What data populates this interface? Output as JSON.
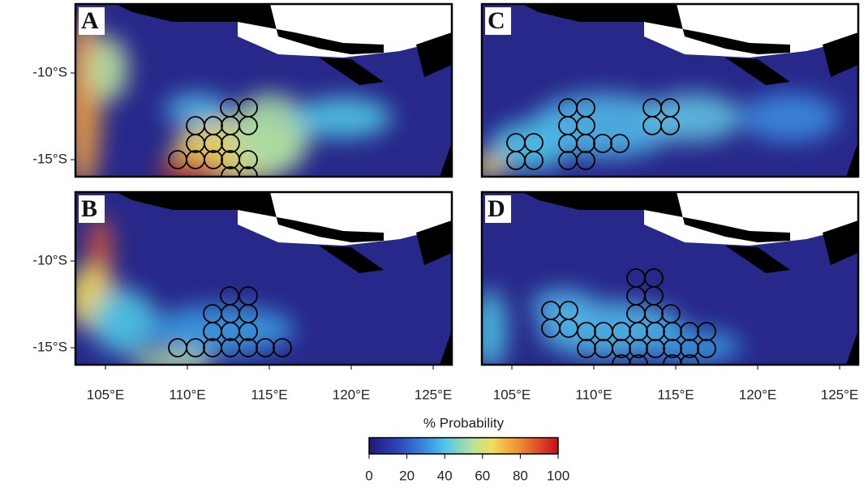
{
  "panels": [
    {
      "label": "A"
    },
    {
      "label": "B"
    },
    {
      "label": "C"
    },
    {
      "label": "D"
    }
  ],
  "axes": {
    "lat_ticks": [
      "-10°S",
      "-15°S"
    ],
    "lon_ticks": [
      "105°E",
      "110°E",
      "115°E",
      "120°E",
      "125°E"
    ]
  },
  "colorbar": {
    "title": "% Probability",
    "ticks": [
      0,
      20,
      40,
      60,
      80,
      100
    ],
    "lim": [
      0,
      100
    ]
  }
}
